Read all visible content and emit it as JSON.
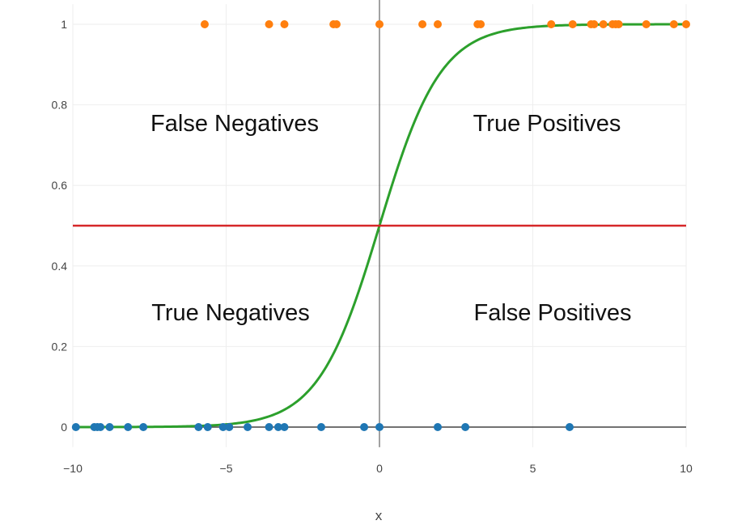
{
  "chart_data": {
    "type": "scatter",
    "xlabel": "x",
    "xlim": [
      -10,
      10
    ],
    "ylim": [
      -0.05,
      1.05
    ],
    "x_ticks": [
      -10,
      -5,
      0,
      5,
      10
    ],
    "x_tick_labels": [
      "−10",
      "−5",
      "0",
      "5",
      "10"
    ],
    "y_ticks": [
      0,
      0.2,
      0.4,
      0.6,
      0.8,
      1
    ],
    "y_tick_labels": [
      "0",
      "0.2",
      "0.4",
      "0.6",
      "0.8",
      "1"
    ],
    "grid": true,
    "threshold": 0.5,
    "series": [
      {
        "color": "#ff7f0e",
        "type": "scatter",
        "x": [
          -5.7,
          -3.6,
          -3.1,
          -1.5,
          -1.4,
          0,
          1.4,
          1.9,
          3.2,
          3.3,
          5.6,
          6.3,
          6.9,
          7.0,
          7.3,
          7.6,
          7.7,
          7.8,
          8.7,
          9.6,
          10.0
        ],
        "y": [
          1,
          1,
          1,
          1,
          1,
          1,
          1,
          1,
          1,
          1,
          1,
          1,
          1,
          1,
          1,
          1,
          1,
          1,
          1,
          1,
          1
        ]
      },
      {
        "color": "#1f77b4",
        "type": "scatter",
        "x": [
          -9.9,
          -9.3,
          -9.2,
          -9.1,
          -8.8,
          -8.2,
          -7.7,
          -5.9,
          -5.6,
          -5.1,
          -4.9,
          -4.3,
          -3.6,
          -3.3,
          -3.1,
          -1.9,
          -0.5,
          0,
          1.9,
          2.8,
          6.2
        ],
        "y": [
          0,
          0,
          0,
          0,
          0,
          0,
          0,
          0,
          0,
          0,
          0,
          0,
          0,
          0,
          0,
          0,
          0,
          0,
          0,
          0,
          0
        ]
      },
      {
        "color": "#2ca02c",
        "type": "line",
        "function": "1 / (1 + exp(-x))"
      },
      {
        "color": "#d62728",
        "type": "line",
        "y_constant": 0.5
      }
    ],
    "annotations": {
      "false_negatives": "False Negatives",
      "true_positives": "True Positives",
      "true_negatives": "True Negatives",
      "false_positives": "False Positives"
    }
  }
}
